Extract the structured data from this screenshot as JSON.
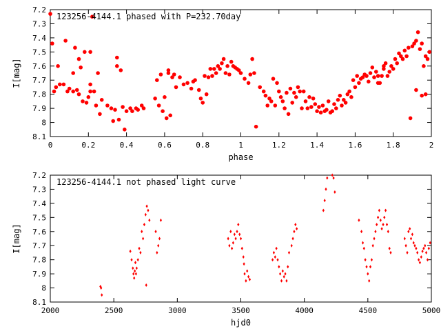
{
  "chart_data": [
    {
      "type": "scatter",
      "title": "123256-4144.1 phased with P=232.70day",
      "xlabel": "phase",
      "ylabel": "I[mag]",
      "xlim": [
        0,
        2
      ],
      "ylim": [
        8.1,
        7.2
      ],
      "y_inverted": true,
      "xticks": [
        "0",
        "0.2",
        "0.4",
        "0.6",
        "0.8",
        "1",
        "1.2",
        "1.4",
        "1.6",
        "1.8",
        "2"
      ],
      "yticks": [
        "7.2",
        "7.3",
        "7.4",
        "7.5",
        "7.6",
        "7.7",
        "7.8",
        "7.9",
        "8",
        "8.1"
      ],
      "marker_color": "#ff0000",
      "grid": false,
      "points": [
        [
          0.0,
          7.23
        ],
        [
          0.01,
          7.44
        ],
        [
          0.02,
          7.78
        ],
        [
          0.03,
          7.75
        ],
        [
          0.04,
          7.6
        ],
        [
          0.05,
          7.73
        ],
        [
          0.07,
          7.73
        ],
        [
          0.08,
          7.42
        ],
        [
          0.09,
          7.78
        ],
        [
          0.1,
          7.76
        ],
        [
          0.12,
          7.78
        ],
        [
          0.13,
          7.47
        ],
        [
          0.14,
          7.77
        ],
        [
          0.15,
          7.8
        ],
        [
          0.15,
          7.55
        ],
        [
          0.16,
          7.61
        ],
        [
          0.17,
          7.85
        ],
        [
          0.18,
          7.5
        ],
        [
          0.19,
          7.86
        ],
        [
          0.2,
          7.82
        ],
        [
          0.21,
          7.73
        ],
        [
          0.21,
          7.5
        ],
        [
          0.22,
          7.25
        ],
        [
          0.23,
          7.78
        ],
        [
          0.24,
          7.88
        ],
        [
          0.25,
          7.65
        ],
        [
          0.26,
          7.94
        ],
        [
          0.27,
          7.84
        ],
        [
          0.3,
          7.88
        ],
        [
          0.32,
          7.9
        ],
        [
          0.33,
          7.99
        ],
        [
          0.34,
          7.91
        ],
        [
          0.35,
          7.54
        ],
        [
          0.36,
          7.98
        ],
        [
          0.37,
          7.63
        ],
        [
          0.38,
          7.89
        ],
        [
          0.39,
          8.05
        ],
        [
          0.4,
          7.92
        ],
        [
          0.42,
          7.9
        ],
        [
          0.43,
          7.92
        ],
        [
          0.45,
          7.9
        ],
        [
          0.46,
          7.91
        ],
        [
          0.48,
          7.88
        ],
        [
          0.49,
          7.9
        ],
        [
          0.55,
          7.83
        ],
        [
          0.56,
          7.7
        ],
        [
          0.57,
          7.88
        ],
        [
          0.58,
          7.66
        ],
        [
          0.59,
          7.92
        ],
        [
          0.6,
          7.82
        ],
        [
          0.61,
          7.97
        ],
        [
          0.62,
          7.65
        ],
        [
          0.63,
          7.95
        ],
        [
          0.64,
          7.68
        ],
        [
          0.65,
          7.66
        ],
        [
          0.66,
          7.75
        ],
        [
          0.68,
          7.68
        ],
        [
          0.7,
          7.73
        ],
        [
          0.72,
          7.72
        ],
        [
          0.74,
          7.76
        ],
        [
          0.75,
          7.71
        ],
        [
          0.76,
          7.7
        ],
        [
          0.78,
          7.77
        ],
        [
          0.79,
          7.83
        ],
        [
          0.8,
          7.86
        ],
        [
          0.81,
          7.67
        ],
        [
          0.82,
          7.8
        ],
        [
          0.83,
          7.68
        ],
        [
          0.84,
          7.62
        ],
        [
          0.85,
          7.67
        ],
        [
          0.86,
          7.62
        ],
        [
          0.87,
          7.65
        ],
        [
          0.88,
          7.6
        ],
        [
          0.89,
          7.62
        ],
        [
          0.9,
          7.58
        ],
        [
          0.91,
          7.55
        ],
        [
          0.92,
          7.65
        ],
        [
          0.93,
          7.6
        ],
        [
          0.94,
          7.66
        ],
        [
          0.95,
          7.57
        ],
        [
          0.96,
          7.6
        ],
        [
          0.97,
          7.61
        ],
        [
          0.98,
          7.62
        ],
        [
          0.99,
          7.63
        ],
        [
          1.0,
          7.65
        ],
        [
          1.02,
          7.69
        ],
        [
          1.04,
          7.72
        ],
        [
          1.05,
          7.66
        ],
        [
          1.06,
          7.55
        ],
        [
          1.07,
          7.65
        ],
        [
          1.08,
          8.03
        ],
        [
          1.1,
          7.75
        ],
        [
          1.12,
          7.78
        ],
        [
          1.13,
          7.81
        ],
        [
          1.14,
          7.88
        ],
        [
          1.15,
          7.83
        ],
        [
          1.16,
          7.85
        ],
        [
          1.17,
          7.69
        ],
        [
          1.18,
          7.88
        ],
        [
          1.19,
          7.72
        ],
        [
          1.2,
          7.78
        ],
        [
          1.21,
          7.82
        ],
        [
          1.22,
          7.85
        ],
        [
          1.23,
          7.9
        ],
        [
          1.24,
          7.79
        ],
        [
          1.25,
          7.94
        ],
        [
          1.26,
          7.76
        ],
        [
          1.27,
          7.86
        ],
        [
          1.28,
          7.79
        ],
        [
          1.29,
          7.82
        ],
        [
          1.3,
          7.75
        ],
        [
          1.31,
          7.78
        ],
        [
          1.32,
          7.9
        ],
        [
          1.33,
          7.78
        ],
        [
          1.34,
          7.85
        ],
        [
          1.35,
          7.9
        ],
        [
          1.36,
          7.82
        ],
        [
          1.37,
          7.89
        ],
        [
          1.38,
          7.83
        ],
        [
          1.39,
          7.87
        ],
        [
          1.4,
          7.92
        ],
        [
          1.41,
          7.89
        ],
        [
          1.42,
          7.93
        ],
        [
          1.43,
          7.88
        ],
        [
          1.44,
          7.92
        ],
        [
          1.45,
          7.91
        ],
        [
          1.46,
          7.85
        ],
        [
          1.47,
          7.93
        ],
        [
          1.48,
          7.92
        ],
        [
          1.49,
          7.87
        ],
        [
          1.5,
          7.9
        ],
        [
          1.51,
          7.84
        ],
        [
          1.52,
          7.81
        ],
        [
          1.53,
          7.88
        ],
        [
          1.54,
          7.84
        ],
        [
          1.55,
          7.86
        ],
        [
          1.56,
          7.8
        ],
        [
          1.57,
          7.78
        ],
        [
          1.58,
          7.82
        ],
        [
          1.59,
          7.7
        ],
        [
          1.6,
          7.75
        ],
        [
          1.61,
          7.67
        ],
        [
          1.62,
          7.72
        ],
        [
          1.63,
          7.69
        ],
        [
          1.64,
          7.68
        ],
        [
          1.65,
          7.66
        ],
        [
          1.66,
          7.67
        ],
        [
          1.67,
          7.71
        ],
        [
          1.68,
          7.65
        ],
        [
          1.69,
          7.61
        ],
        [
          1.7,
          7.68
        ],
        [
          1.71,
          7.64
        ],
        [
          1.72,
          7.67
        ],
        [
          1.73,
          7.72
        ],
        [
          1.74,
          7.67
        ],
        [
          1.75,
          7.62
        ],
        [
          1.76,
          7.58
        ],
        [
          1.77,
          7.67
        ],
        [
          1.78,
          7.64
        ],
        [
          1.79,
          7.6
        ],
        [
          1.8,
          7.62
        ],
        [
          1.81,
          7.55
        ],
        [
          1.82,
          7.58
        ],
        [
          1.83,
          7.51
        ],
        [
          1.84,
          7.53
        ],
        [
          1.85,
          7.55
        ],
        [
          1.86,
          7.49
        ],
        [
          1.87,
          7.53
        ],
        [
          1.88,
          7.47
        ],
        [
          1.89,
          7.97
        ],
        [
          1.9,
          7.46
        ],
        [
          1.91,
          7.44
        ],
        [
          1.92,
          7.42
        ],
        [
          1.93,
          7.36
        ],
        [
          1.94,
          7.48
        ],
        [
          1.95,
          7.44
        ],
        [
          1.96,
          7.6
        ],
        [
          1.97,
          7.53
        ],
        [
          1.98,
          7.55
        ],
        [
          1.99,
          7.5
        ],
        [
          0.12,
          7.65
        ],
        [
          0.21,
          7.78
        ],
        [
          0.35,
          7.6
        ],
        [
          0.62,
          7.63
        ],
        [
          1.72,
          7.72
        ],
        [
          1.75,
          7.6
        ],
        [
          1.92,
          7.77
        ],
        [
          1.95,
          7.81
        ],
        [
          1.97,
          7.8
        ]
      ]
    },
    {
      "type": "scatter",
      "title": "123256-4144.1 not phased light curve",
      "xlabel": "hjd0",
      "ylabel": "I[mag]",
      "xlim": [
        2000,
        5000
      ],
      "ylim": [
        8.1,
        7.2
      ],
      "y_inverted": true,
      "xticks": [
        "2000",
        "2500",
        "3000",
        "3500",
        "4000",
        "4500",
        "5000"
      ],
      "yticks": [
        "7.2",
        "7.3",
        "7.4",
        "7.5",
        "7.6",
        "7.7",
        "7.8",
        "7.9",
        "8",
        "8.1"
      ],
      "marker_color": "#ff0000",
      "grid": false,
      "points": [
        [
          2395,
          7.99
        ],
        [
          2400,
          8.0
        ],
        [
          2405,
          8.05
        ],
        [
          2630,
          7.74
        ],
        [
          2640,
          7.8
        ],
        [
          2650,
          7.86
        ],
        [
          2655,
          7.9
        ],
        [
          2660,
          7.93
        ],
        [
          2665,
          7.88
        ],
        [
          2670,
          7.82
        ],
        [
          2675,
          7.9
        ],
        [
          2680,
          7.86
        ],
        [
          2690,
          7.8
        ],
        [
          2700,
          7.72
        ],
        [
          2710,
          7.75
        ],
        [
          2720,
          7.6
        ],
        [
          2730,
          7.65
        ],
        [
          2740,
          7.55
        ],
        [
          2750,
          7.48
        ],
        [
          2760,
          7.42
        ],
        [
          2770,
          7.45
        ],
        [
          2780,
          7.52
        ],
        [
          2755,
          7.98
        ],
        [
          2830,
          7.6
        ],
        [
          2840,
          7.75
        ],
        [
          2850,
          7.7
        ],
        [
          2860,
          7.65
        ],
        [
          2870,
          7.52
        ],
        [
          3400,
          7.65
        ],
        [
          3410,
          7.7
        ],
        [
          3420,
          7.6
        ],
        [
          3430,
          7.72
        ],
        [
          3440,
          7.68
        ],
        [
          3450,
          7.62
        ],
        [
          3460,
          7.65
        ],
        [
          3470,
          7.6
        ],
        [
          3480,
          7.55
        ],
        [
          3490,
          7.62
        ],
        [
          3500,
          7.65
        ],
        [
          3510,
          7.72
        ],
        [
          3520,
          7.78
        ],
        [
          3525,
          7.83
        ],
        [
          3530,
          7.9
        ],
        [
          3540,
          7.95
        ],
        [
          3550,
          7.88
        ],
        [
          3560,
          7.92
        ],
        [
          3570,
          7.94
        ],
        [
          3750,
          7.8
        ],
        [
          3760,
          7.75
        ],
        [
          3770,
          7.78
        ],
        [
          3780,
          7.72
        ],
        [
          3790,
          7.8
        ],
        [
          3800,
          7.85
        ],
        [
          3810,
          7.9
        ],
        [
          3820,
          7.95
        ],
        [
          3830,
          7.88
        ],
        [
          3840,
          7.92
        ],
        [
          3850,
          7.9
        ],
        [
          3860,
          7.95
        ],
        [
          3870,
          7.85
        ],
        [
          3880,
          7.75
        ],
        [
          3900,
          7.7
        ],
        [
          3910,
          7.65
        ],
        [
          3920,
          7.6
        ],
        [
          3930,
          7.55
        ],
        [
          3940,
          7.58
        ],
        [
          4150,
          7.45
        ],
        [
          4160,
          7.38
        ],
        [
          4170,
          7.3
        ],
        [
          4180,
          7.22
        ],
        [
          4220,
          7.2
        ],
        [
          4230,
          7.22
        ],
        [
          4240,
          7.32
        ],
        [
          4430,
          7.52
        ],
        [
          4450,
          7.6
        ],
        [
          4460,
          7.68
        ],
        [
          4470,
          7.72
        ],
        [
          4480,
          7.8
        ],
        [
          4490,
          7.85
        ],
        [
          4500,
          7.9
        ],
        [
          4510,
          7.95
        ],
        [
          4520,
          7.85
        ],
        [
          4530,
          7.8
        ],
        [
          4540,
          7.7
        ],
        [
          4550,
          7.65
        ],
        [
          4560,
          7.6
        ],
        [
          4570,
          7.55
        ],
        [
          4580,
          7.5
        ],
        [
          4590,
          7.45
        ],
        [
          4600,
          7.52
        ],
        [
          4610,
          7.58
        ],
        [
          4620,
          7.55
        ],
        [
          4630,
          7.5
        ],
        [
          4640,
          7.45
        ],
        [
          4650,
          7.55
        ],
        [
          4660,
          7.6
        ],
        [
          4670,
          7.72
        ],
        [
          4680,
          7.75
        ],
        [
          4790,
          7.65
        ],
        [
          4800,
          7.7
        ],
        [
          4810,
          7.75
        ],
        [
          4820,
          7.6
        ],
        [
          4830,
          7.58
        ],
        [
          4840,
          7.65
        ],
        [
          4850,
          7.62
        ],
        [
          4860,
          7.68
        ],
        [
          4870,
          7.7
        ],
        [
          4880,
          7.72
        ],
        [
          4890,
          7.75
        ],
        [
          4900,
          7.8
        ],
        [
          4910,
          7.82
        ],
        [
          4920,
          7.78
        ],
        [
          4930,
          7.74
        ],
        [
          4940,
          7.72
        ],
        [
          4950,
          7.7
        ],
        [
          4960,
          7.75
        ],
        [
          4970,
          7.8
        ],
        [
          4980,
          7.72
        ],
        [
          4990,
          7.68
        ]
      ]
    }
  ]
}
